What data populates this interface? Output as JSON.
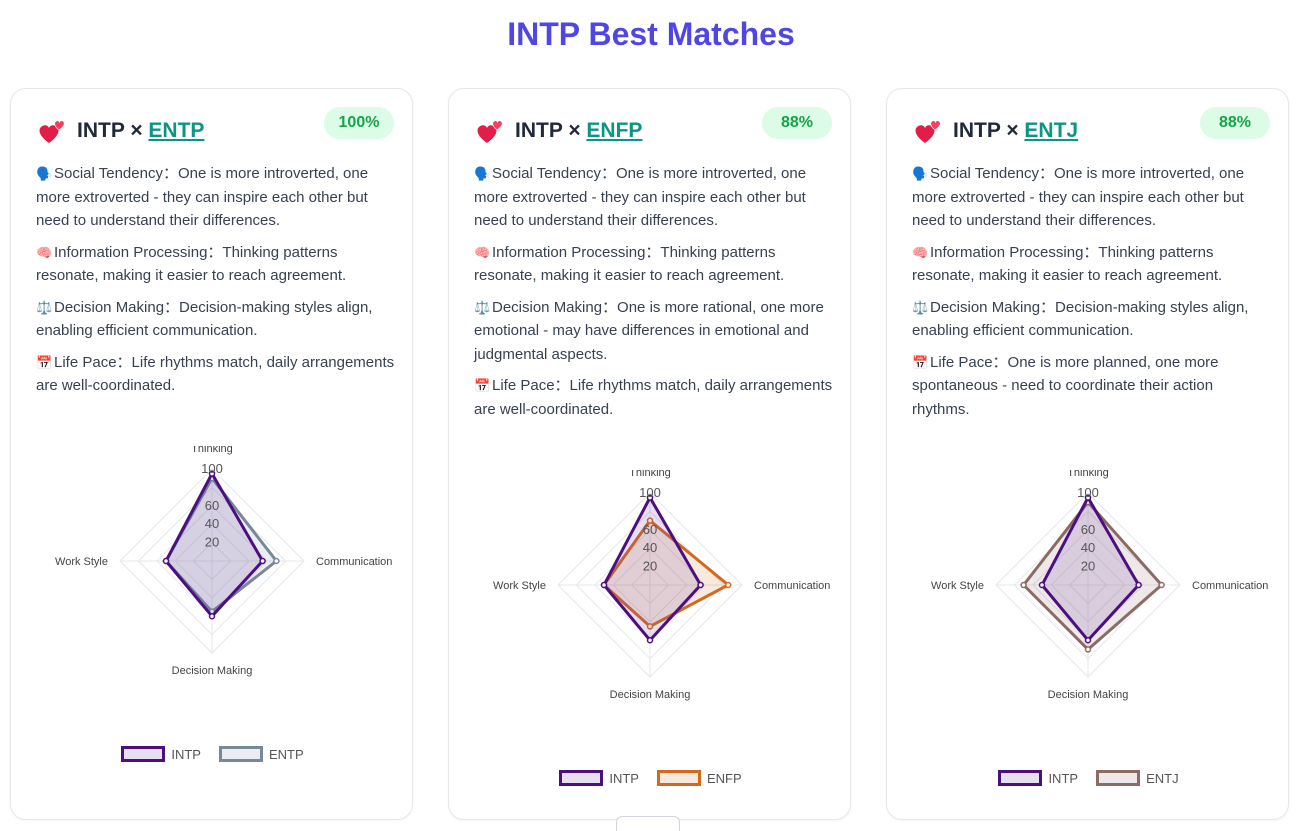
{
  "page": {
    "title": "INTP Best Matches"
  },
  "colors": {
    "title": "#4f46e5",
    "badge_bg": "#dcfce7",
    "badge_text": "#16a34a",
    "link": "#0d9488"
  },
  "radar_axes": [
    "Thinking",
    "Communication",
    "Decision Making",
    "Work Style"
  ],
  "radar_ticks": [
    "20",
    "40",
    "60",
    "100"
  ],
  "cards": [
    {
      "base": "INTP",
      "times": "×",
      "match": "ENTP",
      "score": "100%",
      "heart_icon": "two-hearts-icon",
      "traits": [
        {
          "icon": "speaking-head-icon",
          "glyph": "🗣️",
          "label": "Social Tendency：",
          "text": "One is more introverted, one more extroverted - they can inspire each other but need to understand their differences."
        },
        {
          "icon": "brain-icon",
          "glyph": "🧠",
          "label": "Information Processing：",
          "text": "Thinking patterns resonate, making it easier to reach agreement."
        },
        {
          "icon": "balance-scale-icon",
          "glyph": "⚖️",
          "label": "Decision Making：",
          "text": "Decision-making styles align, enabling efficient communication."
        },
        {
          "icon": "calendar-icon",
          "glyph": "📅",
          "label": "Life Pace：",
          "text": "Life rhythms match, daily arrangements are well-coordinated."
        }
      ],
      "chart_data": {
        "type": "radar",
        "axes": [
          "Thinking",
          "Communication",
          "Decision Making",
          "Work Style"
        ],
        "range": [
          0,
          100
        ],
        "ticks": [
          20,
          40,
          60,
          100
        ],
        "series": [
          {
            "name": "INTP",
            "values": [
              95,
              55,
              60,
              50
            ],
            "color": "#4c0f80",
            "fill": "rgba(120,80,170,0.18)"
          },
          {
            "name": "ENTP",
            "values": [
              90,
              70,
              55,
              50
            ],
            "color": "#778899",
            "fill": "rgba(119,136,153,0.15)"
          }
        ],
        "legend": "bottom"
      }
    },
    {
      "base": "INTP",
      "times": "×",
      "match": "ENFP",
      "score": "88%",
      "heart_icon": "two-hearts-icon",
      "traits": [
        {
          "icon": "speaking-head-icon",
          "glyph": "🗣️",
          "label": "Social Tendency：",
          "text": "One is more introverted, one more extroverted - they can inspire each other but need to understand their differences."
        },
        {
          "icon": "brain-icon",
          "glyph": "🧠",
          "label": "Information Processing：",
          "text": "Thinking patterns resonate, making it easier to reach agreement."
        },
        {
          "icon": "balance-scale-icon",
          "glyph": "⚖️",
          "label": "Decision Making：",
          "text": "One is more rational, one more emotional - may have differences in emotional and judgmental aspects."
        },
        {
          "icon": "calendar-icon",
          "glyph": "📅",
          "label": "Life Pace：",
          "text": "Life rhythms match, daily arrangements are well-coordinated."
        }
      ],
      "chart_data": {
        "type": "radar",
        "axes": [
          "Thinking",
          "Communication",
          "Decision Making",
          "Work Style"
        ],
        "range": [
          0,
          100
        ],
        "ticks": [
          20,
          40,
          60,
          100
        ],
        "series": [
          {
            "name": "INTP",
            "values": [
              95,
              55,
              60,
              50
            ],
            "color": "#4c0f80",
            "fill": "rgba(120,80,170,0.18)"
          },
          {
            "name": "ENFP",
            "values": [
              70,
              85,
              45,
              50
            ],
            "color": "#d2691e",
            "fill": "rgba(210,105,30,0.15)"
          }
        ],
        "legend": "bottom"
      }
    },
    {
      "base": "INTP",
      "times": "×",
      "match": "ENTJ",
      "score": "88%",
      "heart_icon": "two-hearts-icon",
      "traits": [
        {
          "icon": "speaking-head-icon",
          "glyph": "🗣️",
          "label": "Social Tendency：",
          "text": "One is more introverted, one more extroverted - they can inspire each other but need to understand their differences."
        },
        {
          "icon": "brain-icon",
          "glyph": "🧠",
          "label": "Information Processing：",
          "text": "Thinking patterns resonate, making it easier to reach agreement."
        },
        {
          "icon": "balance-scale-icon",
          "glyph": "⚖️",
          "label": "Decision Making：",
          "text": "Decision-making styles align, enabling efficient communication."
        },
        {
          "icon": "calendar-icon",
          "glyph": "📅",
          "label": "Life Pace：",
          "text": "One is more planned, one more spontaneous - need to coordinate their action rhythms."
        }
      ],
      "chart_data": {
        "type": "radar",
        "axes": [
          "Thinking",
          "Communication",
          "Decision Making",
          "Work Style"
        ],
        "range": [
          0,
          100
        ],
        "ticks": [
          20,
          40,
          60,
          100
        ],
        "series": [
          {
            "name": "INTP",
            "values": [
              95,
              55,
              60,
              50
            ],
            "color": "#4c0f80",
            "fill": "rgba(120,80,170,0.18)"
          },
          {
            "name": "ENTJ",
            "values": [
              90,
              80,
              70,
              70
            ],
            "color": "#8b6b66",
            "fill": "rgba(139,107,102,0.15)"
          }
        ],
        "legend": "bottom"
      }
    }
  ]
}
